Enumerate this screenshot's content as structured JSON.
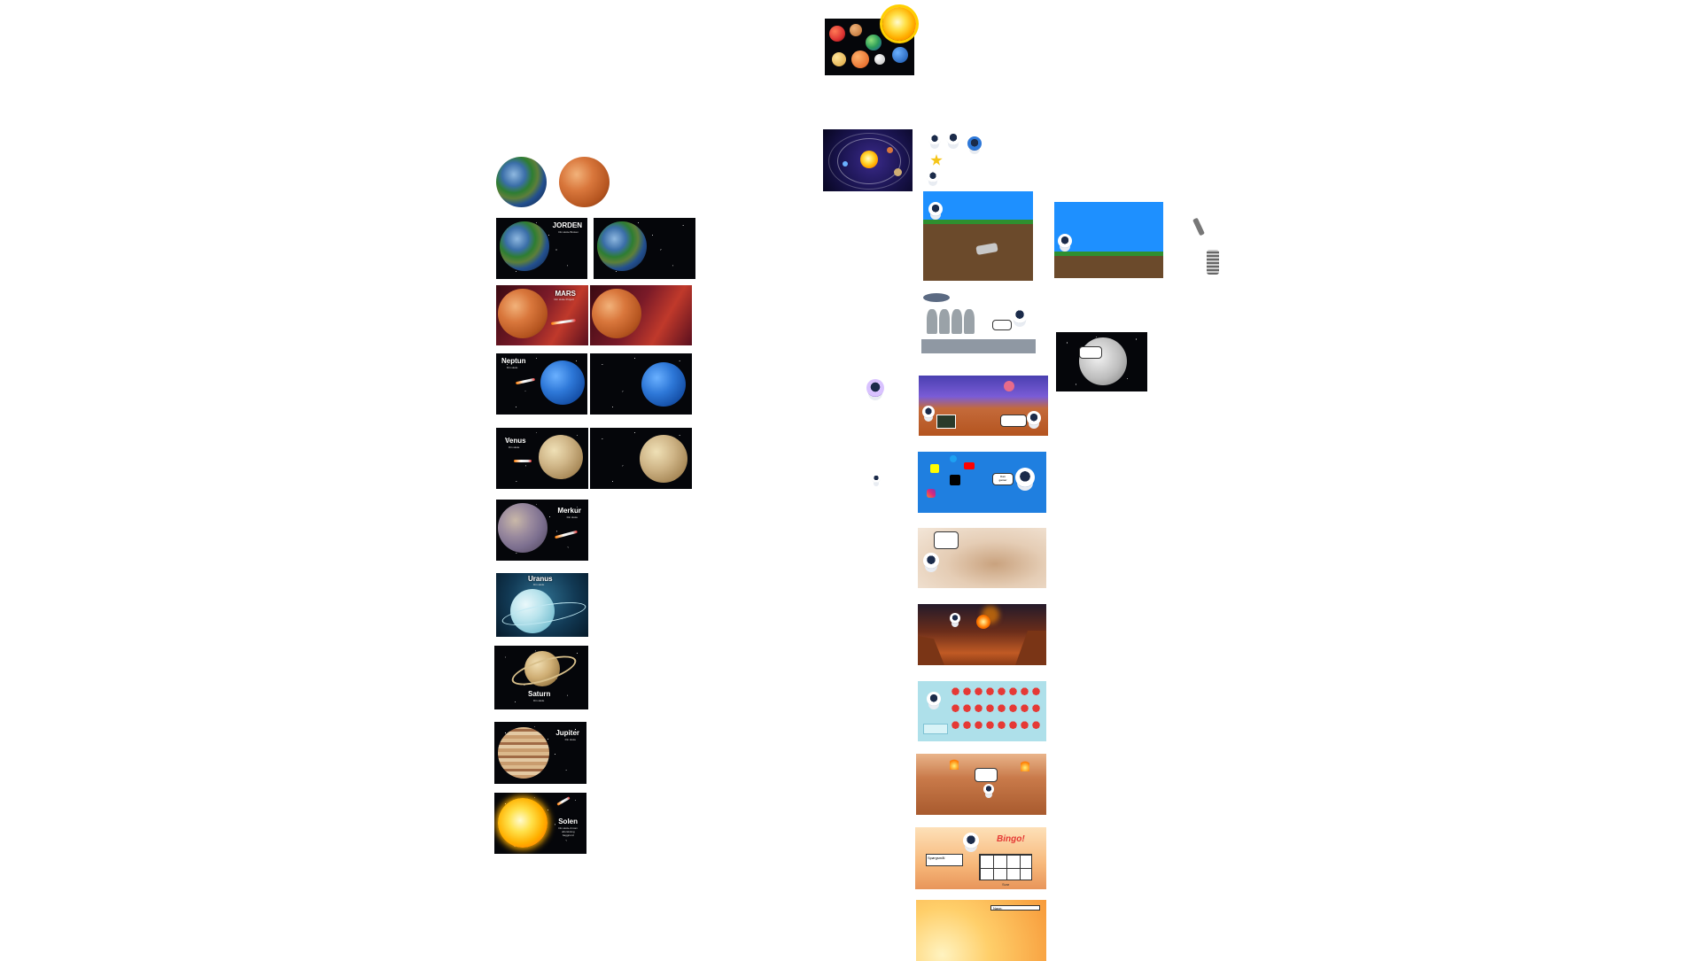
{
  "canvas": {
    "background": "#ffffff"
  },
  "slides": {
    "jorden": {
      "title": "JORDEN",
      "subtitle": "Din skole\nBroken"
    },
    "mars": {
      "title": "MARS",
      "subtitle": "Din skole\nProject"
    },
    "neptun": {
      "title": "Neptun",
      "subtitle": "Din skole"
    },
    "venus": {
      "title": "Venus",
      "subtitle": "Din skole"
    },
    "merkur": {
      "title": "Merkur",
      "subtitle": "Din skole"
    },
    "uranus": {
      "title": "Uranus",
      "subtitle": "Din skole"
    },
    "saturn": {
      "title": "Saturn",
      "subtitle": "Din skole"
    },
    "jupiter": {
      "title": "Jupiter",
      "subtitle": "Din skole"
    },
    "solen": {
      "title": "Solen",
      "subtitle": "Din skole & kom\nutforskning\nbaggrund"
    }
  },
  "game_slides": {
    "social": {
      "speech": "Kan\ngamer"
    },
    "bingo": {
      "title": "Bingo!",
      "label": "Spørgsmål",
      "caption": "Svar"
    },
    "final": {
      "field_label": "Navn:"
    }
  },
  "colors": {
    "space": "#05060a",
    "sky": "#1e90ff",
    "grass": "#2f8f2f",
    "dirt": "#6b4a2b",
    "mars_ground": "#b4541f"
  }
}
